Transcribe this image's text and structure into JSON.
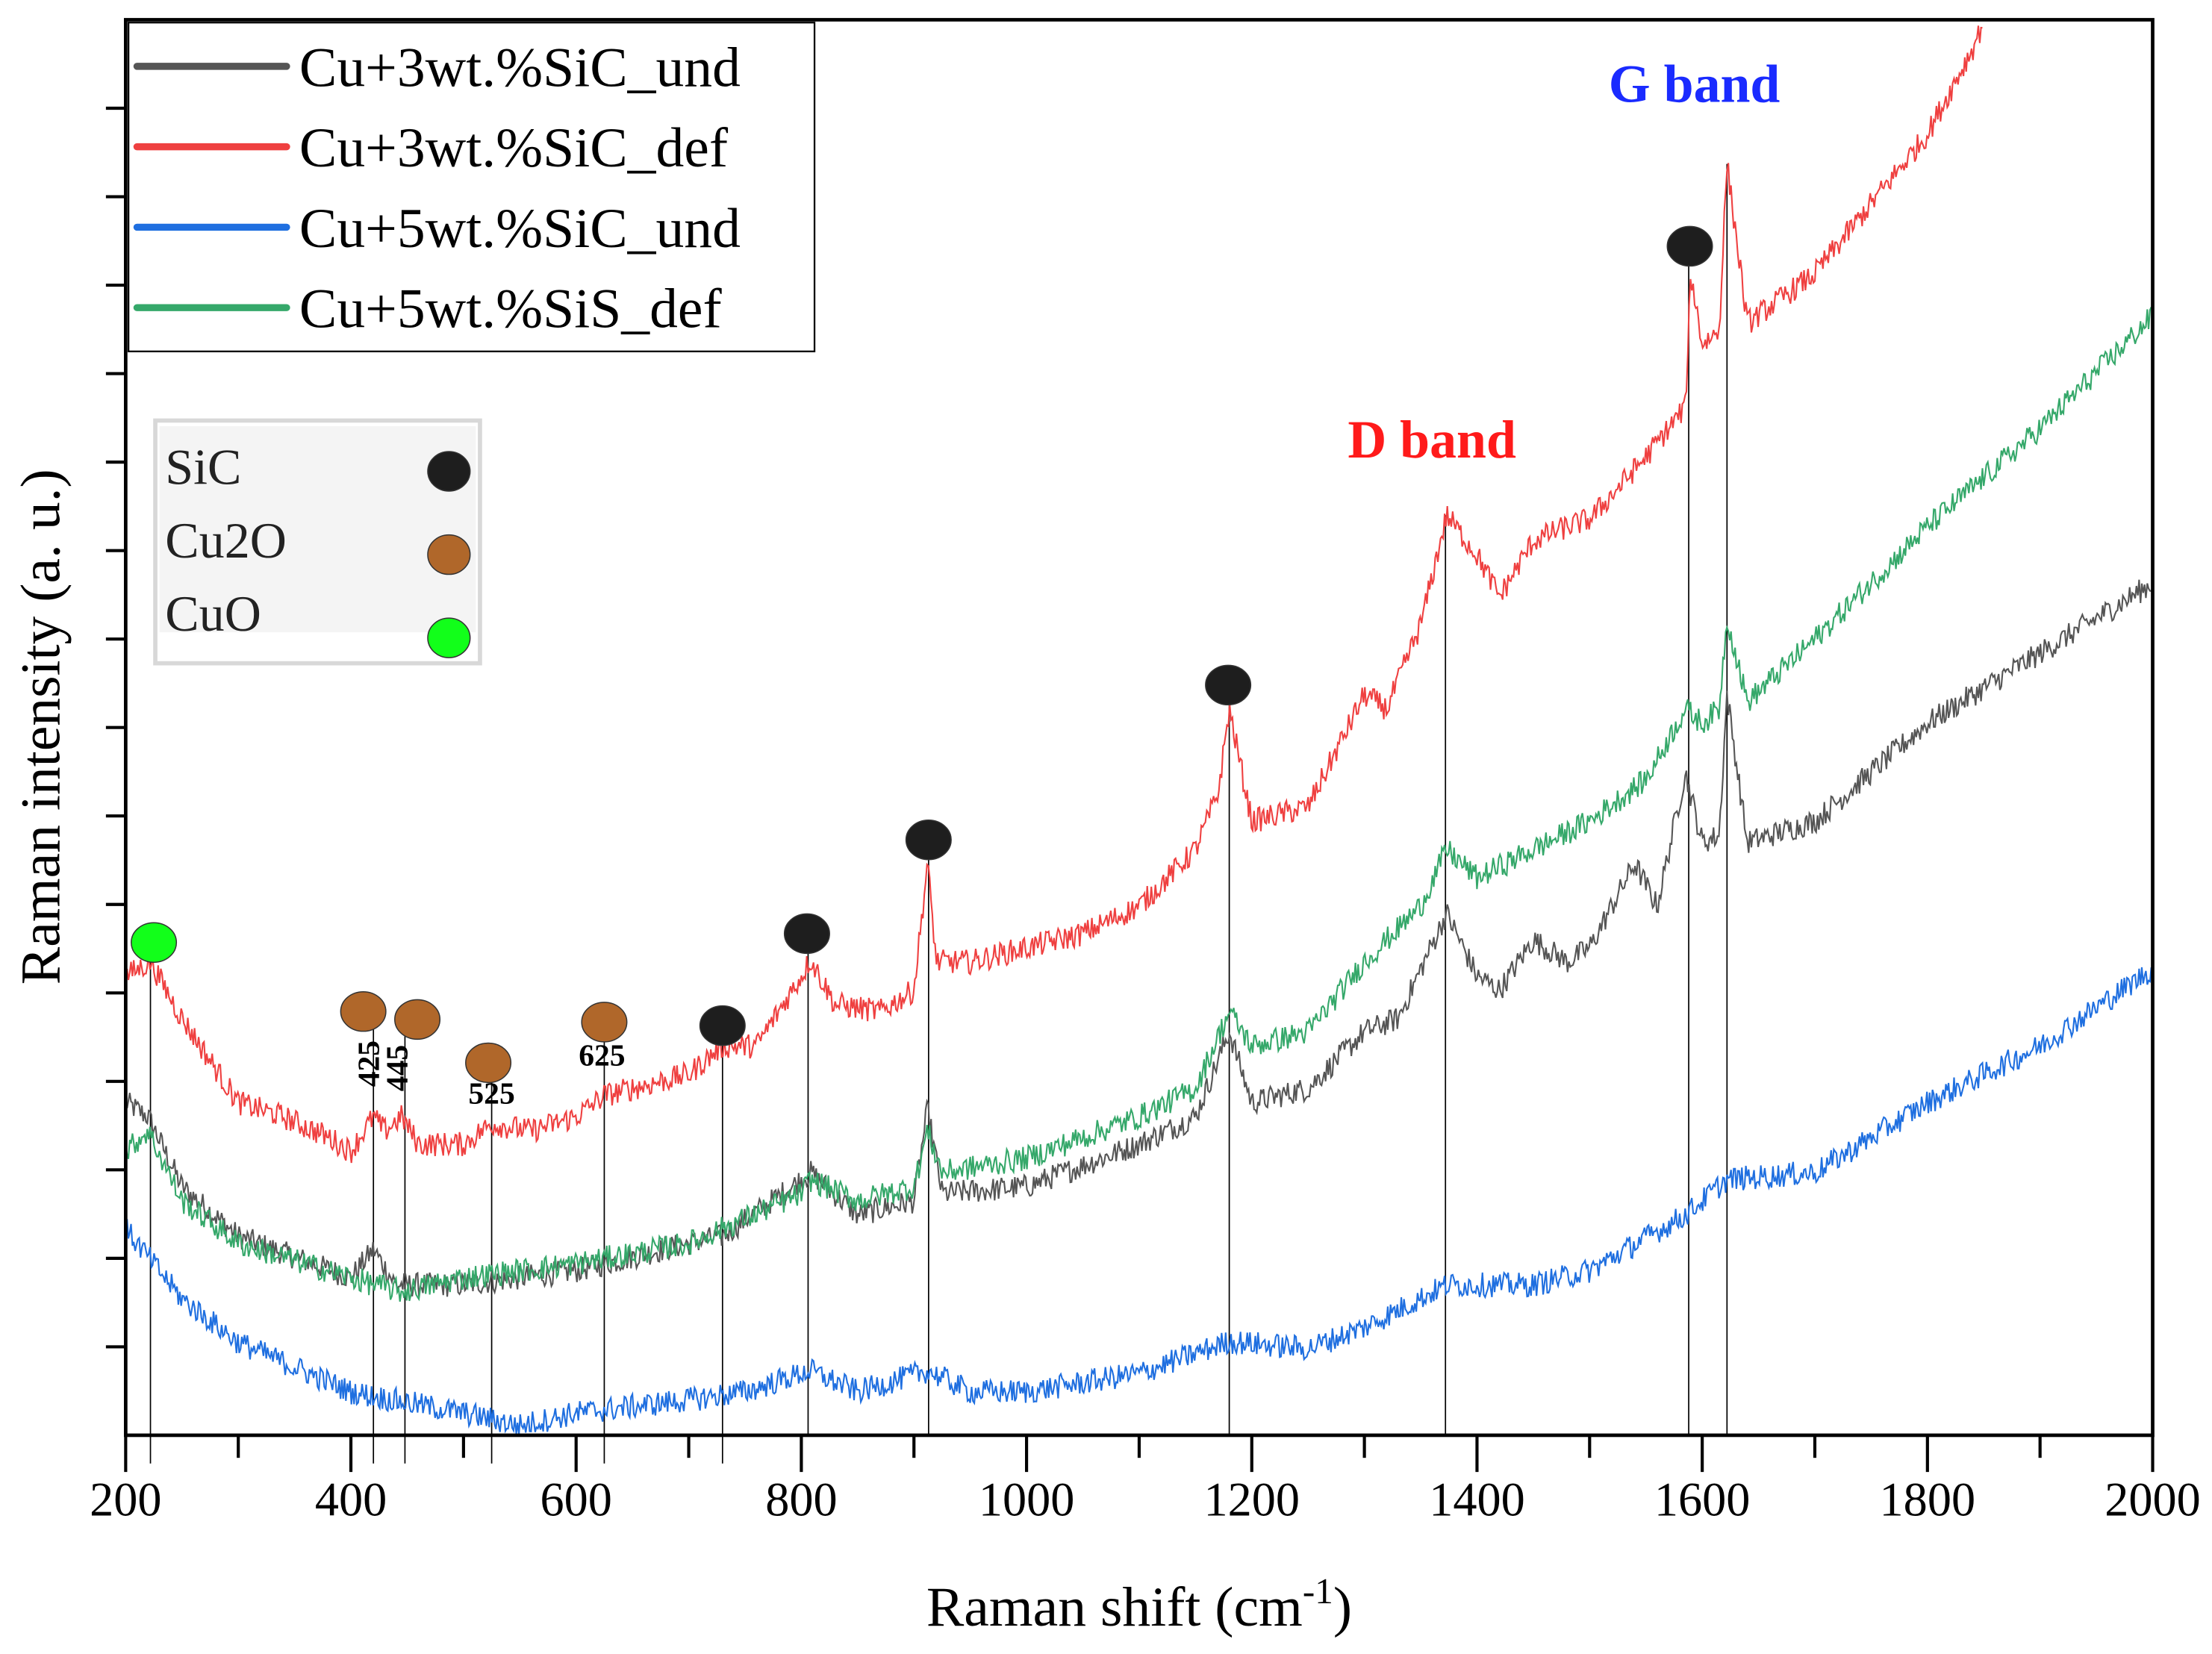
{
  "chart_data": {
    "type": "line",
    "title": "",
    "xlabel": "Raman shift (cm",
    "xlabel_sup": "-1",
    "xlabel_close": ")",
    "ylabel": "Raman intensity (a. u.)",
    "xlim": [
      200,
      2000
    ],
    "ylim": [
      0,
      16
    ],
    "x_ticks": [
      200,
      400,
      600,
      800,
      1000,
      1200,
      1400,
      1600,
      1800,
      2000
    ],
    "x_tick_labels": [
      "200",
      "400",
      "600",
      "800",
      "1000",
      "1200",
      "1400",
      "1600",
      "1800",
      "2000"
    ],
    "y_tick_labels_shown": false,
    "grid": false,
    "legend_placement": "top-left",
    "series": [
      {
        "name": "Cu+3wt.%SiC_und",
        "color": "#555555",
        "x": [
          200,
          220,
          250,
          300,
          400,
          420,
          440,
          500,
          600,
          700,
          730,
          800,
          808,
          850,
          900,
          912,
          925,
          1000,
          1100,
          1150,
          1180,
          1200,
          1250,
          1300,
          1330,
          1373,
          1400,
          1420,
          1450,
          1480,
          1500,
          1540,
          1560,
          1585,
          1600,
          1615,
          1622,
          1640,
          1700,
          1800,
          1900,
          2000
        ],
        "y": [
          3.76,
          3.6,
          2.81,
          2.25,
          1.78,
          2.1,
          1.7,
          1.7,
          1.86,
          2.17,
          2.25,
          2.89,
          2.97,
          2.49,
          2.65,
          3.68,
          2.73,
          2.81,
          3.29,
          3.6,
          4.56,
          3.76,
          3.92,
          4.56,
          4.71,
          5.9,
          5.19,
          5.03,
          5.6,
          5.35,
          5.51,
          6.46,
          5.98,
          7.49,
          6.7,
          6.78,
          8.37,
          6.7,
          6.94,
          8.05,
          8.84,
          9.63
        ]
      },
      {
        "name": "Cu+3wt.%SiC_def",
        "color": "#ef4040",
        "x": [
          200,
          222,
          250,
          300,
          340,
          380,
          400,
          420,
          430,
          445,
          460,
          500,
          525,
          560,
          600,
          625,
          650,
          700,
          730,
          760,
          800,
          808,
          830,
          870,
          900,
          912,
          920,
          950,
          1000,
          1050,
          1100,
          1150,
          1170,
          1180,
          1190,
          1200,
          1250,
          1300,
          1320,
          1350,
          1373,
          1400,
          1420,
          1450,
          1480,
          1500,
          1550,
          1585,
          1590,
          1600,
          1615,
          1622,
          1640,
          1700,
          1750,
          1800,
          1840,
          1850
        ],
        "y": [
          5.19,
          5.35,
          4.71,
          3.76,
          3.6,
          3.37,
          3.21,
          3.6,
          3.44,
          3.6,
          3.29,
          3.29,
          3.52,
          3.44,
          3.6,
          3.84,
          3.92,
          4.08,
          4.4,
          4.4,
          5.19,
          5.38,
          4.87,
          4.79,
          5.03,
          6.46,
          5.35,
          5.35,
          5.51,
          5.67,
          5.98,
          6.62,
          7.25,
          8.21,
          7.57,
          6.94,
          7.1,
          8.37,
          8.21,
          9.16,
          10.4,
          9.95,
          9.48,
          10.11,
          10.27,
          10.35,
          11.06,
          11.62,
          13.13,
          12.33,
          12.49,
          14.37,
          12.57,
          13.13,
          13.92,
          14.71,
          15.67,
          15.98
        ]
      },
      {
        "name": "Cu+5wt.%SiC_und",
        "color": "#1f6fe0",
        "x": [
          200,
          250,
          300,
          400,
          500,
          550,
          600,
          700,
          750,
          808,
          850,
          912,
          950,
          1000,
          1100,
          1180,
          1250,
          1300,
          1373,
          1450,
          1500,
          1585,
          1622,
          1700,
          1800,
          1900,
          2000
        ],
        "y": [
          2.33,
          1.54,
          1.05,
          0.49,
          0.25,
          0.11,
          0.25,
          0.4,
          0.49,
          0.73,
          0.49,
          0.73,
          0.49,
          0.49,
          0.7,
          1.06,
          0.98,
          1.22,
          1.7,
          1.7,
          1.86,
          2.49,
          2.89,
          2.97,
          3.76,
          4.4,
          5.27
        ]
      },
      {
        "name": "Cu+5wt.%SiS_def",
        "color": "#35a86a",
        "x": [
          200,
          220,
          250,
          300,
          400,
          445,
          500,
          600,
          700,
          800,
          808,
          850,
          900,
          912,
          925,
          1000,
          1100,
          1150,
          1180,
          1200,
          1250,
          1300,
          1350,
          1373,
          1400,
          1450,
          1500,
          1550,
          1585,
          1600,
          1615,
          1622,
          1640,
          1700,
          1800,
          1900,
          2000
        ],
        "y": [
          3.21,
          3.44,
          2.65,
          2.17,
          1.78,
          1.62,
          1.78,
          1.94,
          2.17,
          2.73,
          2.89,
          2.65,
          2.81,
          3.44,
          2.97,
          3.13,
          3.6,
          3.92,
          4.79,
          4.4,
          4.56,
          5.35,
          5.98,
          6.62,
          6.3,
          6.62,
          6.94,
          7.41,
          8.21,
          8.05,
          8.21,
          9.24,
          8.29,
          9.0,
          10.27,
          11.38,
          12.65
        ]
      }
    ],
    "reference_lines_x": [
      222,
      420,
      448,
      525,
      625,
      730,
      806,
      913,
      1180,
      1372,
      1588,
      1622
    ],
    "markers": [
      {
        "phase": "CuO",
        "x": 225,
        "y": 5.57
      },
      {
        "phase": "Cu2O",
        "x": 411,
        "y": 4.79
      },
      {
        "phase": "Cu2O",
        "x": 459,
        "y": 4.7
      },
      {
        "phase": "Cu2O",
        "x": 522,
        "y": 4.21
      },
      {
        "phase": "Cu2O",
        "x": 625,
        "y": 4.67
      },
      {
        "phase": "SiC",
        "x": 730,
        "y": 4.63
      },
      {
        "phase": "SiC",
        "x": 805,
        "y": 5.67
      },
      {
        "phase": "SiC",
        "x": 913,
        "y": 6.73
      },
      {
        "phase": "SiC",
        "x": 1179,
        "y": 8.48
      },
      {
        "phase": "SiC",
        "x": 1589,
        "y": 13.44
      }
    ],
    "phase_legend": [
      {
        "label": "SiC",
        "color": "#1e1e1e"
      },
      {
        "label": "Cu2O",
        "color": "#b0672a"
      },
      {
        "label": "CuO",
        "color": "#12ff1a"
      }
    ],
    "annotations": [
      {
        "text": "425",
        "x": 425,
        "y": 4.2,
        "rotated": true,
        "color": "#000000"
      },
      {
        "text": "445",
        "x": 450,
        "y": 4.15,
        "rotated": true,
        "color": "#000000"
      },
      {
        "text": "525",
        "x": 525,
        "y": 3.75,
        "rotated": false,
        "color": "#000000"
      },
      {
        "text": "625",
        "x": 623,
        "y": 4.18,
        "rotated": false,
        "color": "#000000"
      },
      {
        "text": "D band",
        "x": 1360,
        "y": 11.05,
        "rotated": false,
        "color": "#ff1a1a"
      },
      {
        "text": "G band",
        "x": 1593,
        "y": 15.07,
        "rotated": false,
        "color": "#1a2bff"
      }
    ]
  }
}
